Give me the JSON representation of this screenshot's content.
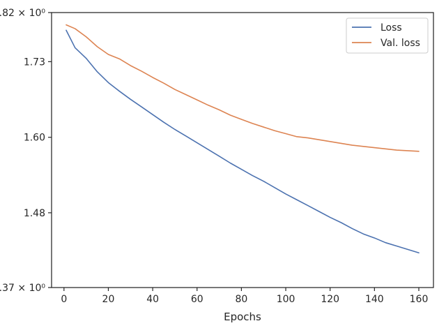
{
  "chart_data": {
    "type": "line",
    "title": "",
    "xlabel": "Epochs",
    "ylabel": "",
    "xlim": [
      -5.6,
      166.6
    ],
    "ylim": [
      1.37,
      1.82
    ],
    "y_scale": "log",
    "grid": false,
    "legend_placement": "top-right",
    "x_ticks": [
      0,
      20,
      40,
      60,
      80,
      100,
      120,
      140,
      160
    ],
    "x_tick_labels": [
      "0",
      "20",
      "40",
      "60",
      "80",
      "100",
      "120",
      "140",
      "160"
    ],
    "y_ticks": [
      1.37,
      1.48,
      1.6,
      1.73,
      1.82
    ],
    "y_tick_labels": [
      "1.37 × 10⁰",
      "1.48",
      "1.60",
      "1.73",
      "1.82 × 10⁰"
    ],
    "x": [
      1,
      5,
      10,
      15,
      20,
      25,
      30,
      35,
      40,
      45,
      50,
      55,
      60,
      65,
      70,
      75,
      80,
      85,
      90,
      95,
      100,
      105,
      110,
      115,
      120,
      125,
      130,
      135,
      140,
      145,
      150,
      155,
      160
    ],
    "series": [
      {
        "name": "Loss",
        "color": "#4c72b0",
        "values": [
          1.787,
          1.755,
          1.736,
          1.712,
          1.693,
          1.678,
          1.664,
          1.651,
          1.638,
          1.625,
          1.613,
          1.602,
          1.591,
          1.58,
          1.569,
          1.558,
          1.548,
          1.538,
          1.529,
          1.519,
          1.509,
          1.5,
          1.491,
          1.482,
          1.473,
          1.465,
          1.456,
          1.448,
          1.442,
          1.435,
          1.43,
          1.425,
          1.42
        ]
      },
      {
        "name": "Val. loss",
        "color": "#dd8452",
        "values": [
          1.797,
          1.79,
          1.775,
          1.757,
          1.743,
          1.735,
          1.723,
          1.713,
          1.702,
          1.692,
          1.681,
          1.672,
          1.663,
          1.654,
          1.646,
          1.637,
          1.63,
          1.623,
          1.617,
          1.611,
          1.606,
          1.601,
          1.599,
          1.596,
          1.593,
          1.59,
          1.587,
          1.585,
          1.583,
          1.581,
          1.579,
          1.578,
          1.577
        ]
      }
    ]
  }
}
